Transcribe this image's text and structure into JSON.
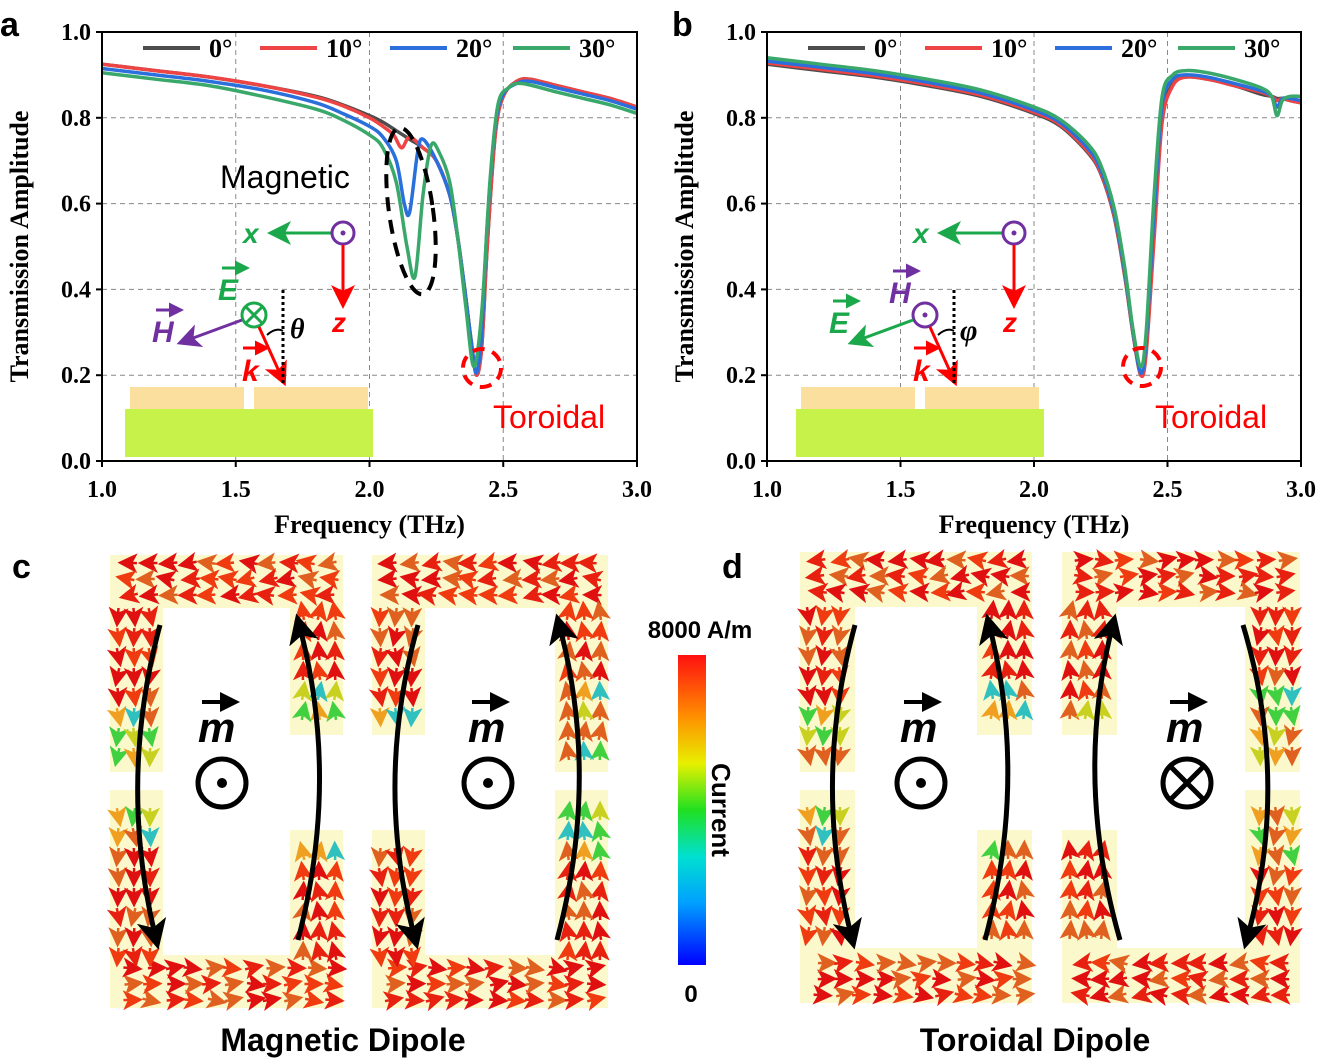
{
  "panels": {
    "a": "a",
    "b": "b",
    "c": "c",
    "d": "d"
  },
  "colors": {
    "0deg": "#4d4d4d",
    "10deg": "#ee4444",
    "20deg": "#2a6fdb",
    "30deg": "#3aa86b",
    "substrate": "#c6f24a",
    "metal": "#fbdf9e",
    "ring": "#fbf8cc"
  },
  "chart_data": [
    {
      "type": "line",
      "panel": "a",
      "xlabel": "Frequency (THz)",
      "ylabel": "Transmission Amplitude",
      "xlim": [
        1.0,
        3.0
      ],
      "ylim": [
        0.0,
        1.0
      ],
      "xticks": [
        "1.0",
        "1.5",
        "2.0",
        "2.5",
        "3.0"
      ],
      "yticks": [
        "0.0",
        "0.2",
        "0.4",
        "0.6",
        "0.8",
        "1.0"
      ],
      "grid": true,
      "legend_placement": "top",
      "annotations": {
        "magnetic": "Magnetic",
        "toroidal": "Toroidal",
        "x": "x",
        "z": "z",
        "E": "E",
        "H": "H",
        "k": "k",
        "angle": "θ"
      },
      "series": [
        {
          "name": "0°",
          "x": [
            1.0,
            1.2,
            1.4,
            1.6,
            1.8,
            1.9,
            2.0,
            2.05,
            2.1,
            2.15,
            2.2,
            2.25,
            2.3,
            2.33,
            2.36,
            2.38,
            2.4,
            2.42,
            2.44,
            2.47,
            2.5,
            2.55,
            2.6,
            2.7,
            2.8,
            2.9,
            3.0
          ],
          "y": [
            0.925,
            0.91,
            0.895,
            0.875,
            0.85,
            0.83,
            0.805,
            0.79,
            0.77,
            0.75,
            0.73,
            0.7,
            0.62,
            0.52,
            0.38,
            0.28,
            0.2,
            0.27,
            0.5,
            0.76,
            0.85,
            0.885,
            0.89,
            0.875,
            0.86,
            0.845,
            0.825
          ]
        },
        {
          "name": "10°",
          "x": [
            1.0,
            1.2,
            1.4,
            1.6,
            1.8,
            1.9,
            2.0,
            2.05,
            2.09,
            2.12,
            2.15,
            2.2,
            2.25,
            2.3,
            2.33,
            2.36,
            2.38,
            2.4,
            2.42,
            2.44,
            2.47,
            2.5,
            2.55,
            2.6,
            2.7,
            2.8,
            2.9,
            3.0
          ],
          "y": [
            0.925,
            0.91,
            0.895,
            0.875,
            0.848,
            0.828,
            0.8,
            0.78,
            0.76,
            0.73,
            0.755,
            0.73,
            0.7,
            0.62,
            0.52,
            0.38,
            0.28,
            0.2,
            0.27,
            0.5,
            0.76,
            0.85,
            0.885,
            0.89,
            0.875,
            0.86,
            0.845,
            0.825
          ]
        },
        {
          "name": "20°",
          "x": [
            1.0,
            1.2,
            1.4,
            1.6,
            1.8,
            1.9,
            2.0,
            2.05,
            2.1,
            2.13,
            2.15,
            2.18,
            2.2,
            2.25,
            2.3,
            2.33,
            2.36,
            2.38,
            2.4,
            2.42,
            2.44,
            2.47,
            2.5,
            2.55,
            2.6,
            2.7,
            2.8,
            2.9,
            3.0
          ],
          "y": [
            0.915,
            0.9,
            0.885,
            0.865,
            0.835,
            0.81,
            0.78,
            0.755,
            0.7,
            0.6,
            0.58,
            0.72,
            0.75,
            0.7,
            0.62,
            0.52,
            0.38,
            0.28,
            0.205,
            0.3,
            0.55,
            0.78,
            0.855,
            0.88,
            0.885,
            0.87,
            0.855,
            0.84,
            0.82
          ]
        },
        {
          "name": "30°",
          "x": [
            1.0,
            1.2,
            1.4,
            1.6,
            1.8,
            1.9,
            2.0,
            2.05,
            2.1,
            2.14,
            2.17,
            2.2,
            2.23,
            2.26,
            2.3,
            2.33,
            2.36,
            2.39,
            2.42,
            2.45,
            2.48,
            2.52,
            2.57,
            2.7,
            2.8,
            2.9,
            3.0
          ],
          "y": [
            0.905,
            0.89,
            0.875,
            0.85,
            0.82,
            0.795,
            0.76,
            0.73,
            0.65,
            0.5,
            0.43,
            0.62,
            0.735,
            0.72,
            0.65,
            0.52,
            0.36,
            0.22,
            0.35,
            0.65,
            0.83,
            0.87,
            0.88,
            0.86,
            0.845,
            0.83,
            0.81
          ]
        }
      ]
    },
    {
      "type": "line",
      "panel": "b",
      "xlabel": "Frequency (THz)",
      "ylabel": "Transmission Amplitude",
      "xlim": [
        1.0,
        3.0
      ],
      "ylim": [
        0.0,
        1.0
      ],
      "xticks": [
        "1.0",
        "1.5",
        "2.0",
        "2.5",
        "3.0"
      ],
      "yticks": [
        "0.0",
        "0.2",
        "0.4",
        "0.6",
        "0.8",
        "1.0"
      ],
      "grid": true,
      "legend_placement": "top",
      "annotations": {
        "toroidal": "Toroidal",
        "x": "x",
        "z": "z",
        "E": "E",
        "H": "H",
        "k": "k",
        "angle": "φ"
      },
      "series": [
        {
          "name": "0°",
          "x": [
            1.0,
            1.2,
            1.4,
            1.6,
            1.8,
            2.0,
            2.1,
            2.2,
            2.25,
            2.3,
            2.34,
            2.37,
            2.4,
            2.42,
            2.45,
            2.48,
            2.52,
            2.57,
            2.65,
            2.75,
            2.85,
            2.89,
            2.91,
            2.93,
            2.96,
            3.0
          ],
          "y": [
            0.925,
            0.91,
            0.895,
            0.875,
            0.85,
            0.81,
            0.78,
            0.72,
            0.67,
            0.57,
            0.43,
            0.3,
            0.2,
            0.26,
            0.55,
            0.8,
            0.88,
            0.895,
            0.89,
            0.875,
            0.855,
            0.85,
            0.845,
            0.845,
            0.84,
            0.835
          ]
        },
        {
          "name": "10°",
          "x": [
            1.0,
            1.2,
            1.4,
            1.6,
            1.8,
            2.0,
            2.1,
            2.2,
            2.25,
            2.3,
            2.34,
            2.37,
            2.4,
            2.42,
            2.45,
            2.48,
            2.52,
            2.57,
            2.65,
            2.75,
            2.85,
            2.89,
            2.91,
            2.93,
            2.96,
            3.0
          ],
          "y": [
            0.928,
            0.913,
            0.898,
            0.878,
            0.853,
            0.813,
            0.783,
            0.723,
            0.673,
            0.573,
            0.433,
            0.3,
            0.2,
            0.25,
            0.52,
            0.79,
            0.875,
            0.895,
            0.89,
            0.875,
            0.86,
            0.85,
            0.84,
            0.845,
            0.84,
            0.835
          ]
        },
        {
          "name": "20°",
          "x": [
            1.0,
            1.2,
            1.4,
            1.6,
            1.8,
            2.0,
            2.1,
            2.2,
            2.25,
            2.3,
            2.34,
            2.37,
            2.4,
            2.42,
            2.45,
            2.48,
            2.52,
            2.57,
            2.65,
            2.75,
            2.85,
            2.89,
            2.91,
            2.93,
            2.96,
            3.0
          ],
          "y": [
            0.932,
            0.918,
            0.903,
            0.883,
            0.858,
            0.818,
            0.788,
            0.73,
            0.68,
            0.58,
            0.44,
            0.305,
            0.205,
            0.28,
            0.58,
            0.83,
            0.89,
            0.9,
            0.895,
            0.88,
            0.863,
            0.85,
            0.825,
            0.845,
            0.845,
            0.84
          ]
        },
        {
          "name": "30°",
          "x": [
            1.0,
            1.2,
            1.4,
            1.6,
            1.8,
            2.0,
            2.1,
            2.2,
            2.25,
            2.3,
            2.34,
            2.37,
            2.4,
            2.42,
            2.45,
            2.48,
            2.52,
            2.57,
            2.65,
            2.75,
            2.85,
            2.89,
            2.91,
            2.93,
            2.96,
            3.0
          ],
          "y": [
            0.94,
            0.925,
            0.91,
            0.89,
            0.865,
            0.825,
            0.795,
            0.74,
            0.69,
            0.59,
            0.45,
            0.31,
            0.22,
            0.3,
            0.62,
            0.85,
            0.9,
            0.91,
            0.905,
            0.89,
            0.87,
            0.85,
            0.805,
            0.84,
            0.85,
            0.85
          ]
        }
      ]
    }
  ],
  "current_maps": {
    "c_title": "Magnetic Dipole",
    "d_title": "Toroidal Dipole",
    "moment_label": "m",
    "colorbar": {
      "max_label": "8000 A/m",
      "min_label": "0",
      "title": "Current"
    }
  }
}
